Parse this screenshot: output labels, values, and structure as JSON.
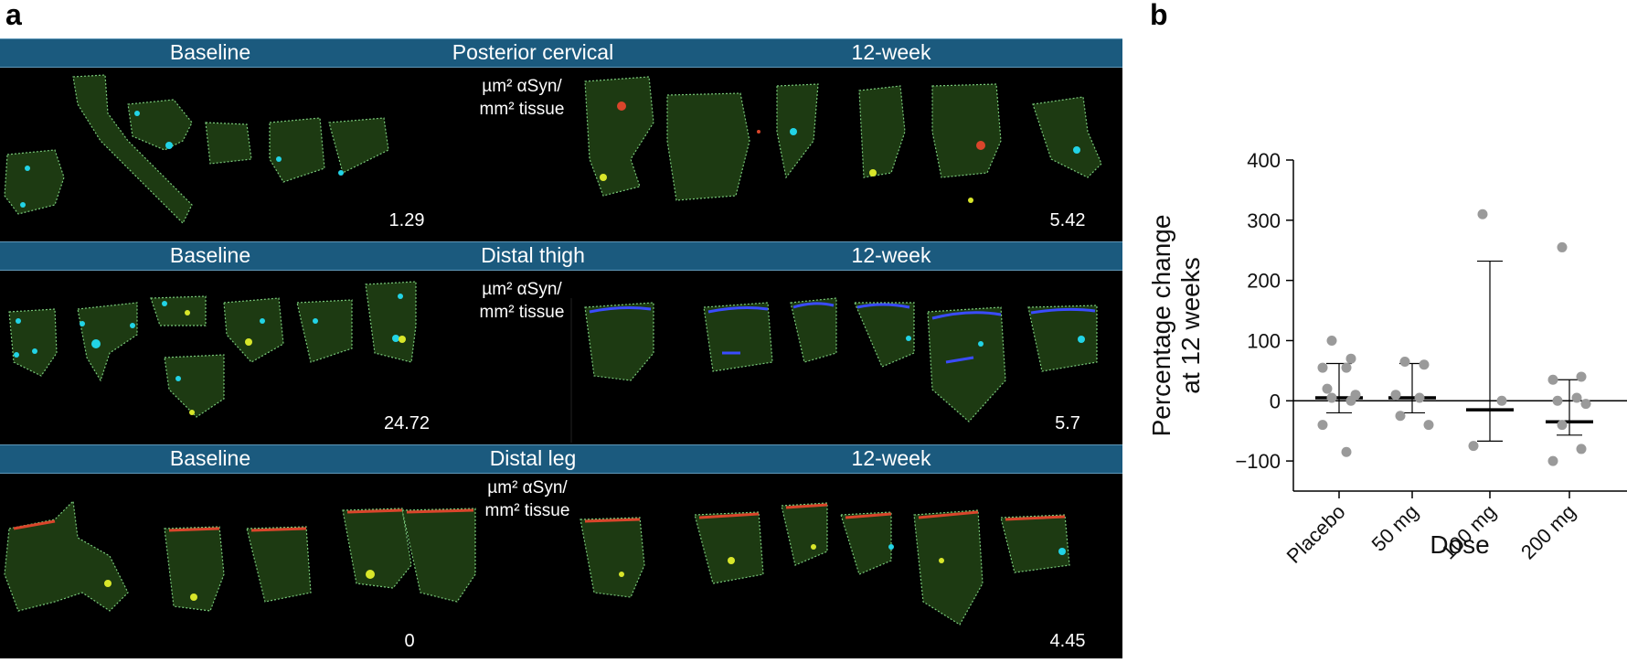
{
  "panel_letters": {
    "a": "a",
    "b": "b"
  },
  "panel_a": {
    "rows": [
      {
        "region": "Posterior cervical",
        "baseline": "Baseline",
        "followup": "12-week",
        "unit_line1": "µm² αSyn/",
        "unit_line2": "mm² tissue",
        "baseline_value": "1.29",
        "followup_value": "5.42"
      },
      {
        "region": "Distal thigh",
        "baseline": "Baseline",
        "followup": "12-week",
        "unit_line1": "µm² αSyn/",
        "unit_line2": "mm² tissue",
        "baseline_value": "24.72",
        "followup_value": "5.7"
      },
      {
        "region": "Distal leg",
        "baseline": "Baseline",
        "followup": "12-week",
        "unit_line1": "µm² αSyn/",
        "unit_line2": "mm² tissue",
        "baseline_value": "0",
        "followup_value": "4.45"
      }
    ],
    "colors": {
      "bar": "#1b5a7e",
      "tissue": "#1d3a12",
      "border": "#79c97a",
      "baseline_spot": "#22d3e6",
      "followup_spot_red": "#d9452b",
      "followup_spot_blue": "#3a4bff",
      "yellow": "#d8e62a"
    }
  },
  "chart_data": {
    "type": "scatter",
    "xlabel": "Dose",
    "ylabel": "Percentage change at 12 weeks",
    "ylabel_lines": [
      "Percentage change",
      "at 12 weeks"
    ],
    "categories": [
      "Placebo",
      "50 mg",
      "100 mg",
      "200 mg"
    ],
    "ylim": [
      -150,
      400
    ],
    "yticks": [
      -100,
      0,
      100,
      200,
      300,
      400
    ],
    "ytick_labels": [
      "−100",
      "0",
      "100",
      "200",
      "300",
      "400"
    ],
    "points": [
      [
        100,
        70,
        55,
        55,
        20,
        10,
        5,
        0,
        -40,
        -85
      ],
      [
        65,
        60,
        10,
        5,
        -25,
        -40
      ],
      [
        310,
        0,
        -75
      ],
      [
        255,
        40,
        35,
        5,
        0,
        -5,
        -40,
        -80,
        -100
      ]
    ],
    "center": [
      5,
      5,
      -15,
      -35
    ],
    "error_low": [
      -20,
      -20,
      -67,
      -57
    ],
    "error_high": [
      62,
      62,
      232,
      35
    ],
    "point_color": "#9a9a9a"
  }
}
